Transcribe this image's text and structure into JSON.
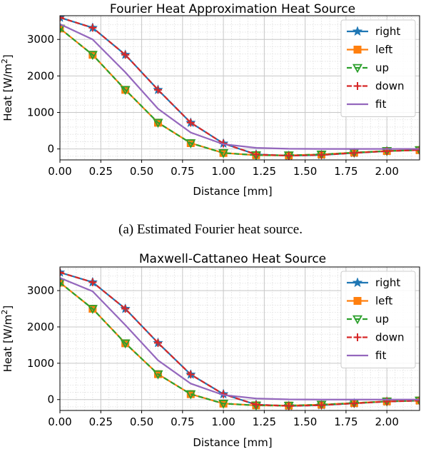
{
  "chart_data": [
    {
      "type": "line",
      "title": "Fourier Heat Approximation Heat Source",
      "xlabel": "Distance [mm]",
      "ylabel_main": "Heat [W/m",
      "ylabel_sup": "2",
      "ylabel_tail": "]",
      "xlim": [
        0,
        2.2
      ],
      "ylim": [
        -300,
        3650
      ],
      "xticks": [
        0,
        0.25,
        0.5,
        0.75,
        1.0,
        1.25,
        1.5,
        1.75,
        2.0
      ],
      "xtick_labels": [
        "0.00",
        "0.25",
        "0.50",
        "0.75",
        "1.00",
        "1.25",
        "1.50",
        "1.75",
        "2.00"
      ],
      "yticks": [
        0,
        1000,
        2000,
        3000
      ],
      "ytick_labels": [
        "0",
        "1000",
        "2000",
        "3000"
      ],
      "grid": true,
      "legend_position": "top-right",
      "caption": "(a) Estimated Fourier heat source.",
      "series": [
        {
          "name": "right",
          "color": "#1f77b4",
          "marker": "star",
          "dash": "solid",
          "x": [
            0,
            0.2,
            0.4,
            0.6,
            0.8,
            1.0,
            1.2,
            1.4,
            1.6,
            1.8,
            2.0,
            2.2
          ],
          "y": [
            3600,
            3320,
            2580,
            1620,
            720,
            150,
            -150,
            -185,
            -165,
            -110,
            -60,
            -30
          ]
        },
        {
          "name": "left",
          "color": "#ff7f0e",
          "marker": "square",
          "dash": "solid",
          "x": [
            0,
            0.2,
            0.4,
            0.6,
            0.8,
            1.0,
            1.2,
            1.4,
            1.6,
            1.8,
            2.0,
            2.2
          ],
          "y": [
            3300,
            2580,
            1620,
            720,
            160,
            -110,
            -170,
            -175,
            -150,
            -100,
            -55,
            -30
          ]
        },
        {
          "name": "up",
          "color": "#2ca02c",
          "marker": "triangle-down",
          "dash": "dashed",
          "x": [
            0,
            0.2,
            0.4,
            0.6,
            0.8,
            1.0,
            1.2,
            1.4,
            1.6,
            1.8,
            2.0,
            2.2
          ],
          "y": [
            3300,
            2580,
            1620,
            720,
            160,
            -110,
            -170,
            -175,
            -150,
            -100,
            -55,
            -30
          ]
        },
        {
          "name": "down",
          "color": "#d62728",
          "marker": "plus",
          "dash": "dashed",
          "x": [
            0,
            0.2,
            0.4,
            0.6,
            0.8,
            1.0,
            1.2,
            1.4,
            1.6,
            1.8,
            2.0,
            2.2
          ],
          "y": [
            3600,
            3320,
            2580,
            1620,
            720,
            150,
            -150,
            -185,
            -165,
            -110,
            -60,
            -30
          ]
        },
        {
          "name": "fit",
          "color": "#9467bd",
          "marker": "none",
          "dash": "solid",
          "x": [
            0,
            0.2,
            0.4,
            0.6,
            0.8,
            1.0,
            1.2,
            1.4,
            1.6,
            1.8,
            2.0,
            2.2
          ],
          "y": [
            3420,
            3000,
            2100,
            1100,
            450,
            130,
            30,
            5,
            0,
            0,
            0,
            0
          ]
        }
      ]
    },
    {
      "type": "line",
      "title": "Maxwell-Cattaneo Heat Source",
      "xlabel": "Distance [mm]",
      "ylabel_main": "Heat [W/m",
      "ylabel_sup": "2",
      "ylabel_tail": "]",
      "xlim": [
        0,
        2.2
      ],
      "ylim": [
        -300,
        3650
      ],
      "xticks": [
        0,
        0.25,
        0.5,
        0.75,
        1.0,
        1.25,
        1.5,
        1.75,
        2.0
      ],
      "xtick_labels": [
        "0.00",
        "0.25",
        "0.50",
        "0.75",
        "1.00",
        "1.25",
        "1.50",
        "1.75",
        "2.00"
      ],
      "yticks": [
        0,
        1000,
        2000,
        3000
      ],
      "ytick_labels": [
        "0",
        "1000",
        "2000",
        "3000"
      ],
      "grid": true,
      "legend_position": "top-right",
      "caption": "",
      "series": [
        {
          "name": "right",
          "color": "#1f77b4",
          "marker": "star",
          "dash": "solid",
          "x": [
            0,
            0.2,
            0.4,
            0.6,
            0.8,
            1.0,
            1.2,
            1.4,
            1.6,
            1.8,
            2.0,
            2.2
          ],
          "y": [
            3500,
            3230,
            2500,
            1560,
            690,
            150,
            -140,
            -175,
            -155,
            -105,
            -55,
            -30
          ]
        },
        {
          "name": "left",
          "color": "#ff7f0e",
          "marker": "square",
          "dash": "solid",
          "x": [
            0,
            0.2,
            0.4,
            0.6,
            0.8,
            1.0,
            1.2,
            1.4,
            1.6,
            1.8,
            2.0,
            2.2
          ],
          "y": [
            3220,
            2500,
            1550,
            700,
            150,
            -110,
            -160,
            -165,
            -140,
            -95,
            -50,
            -25
          ]
        },
        {
          "name": "up",
          "color": "#2ca02c",
          "marker": "triangle-down",
          "dash": "dashed",
          "x": [
            0,
            0.2,
            0.4,
            0.6,
            0.8,
            1.0,
            1.2,
            1.4,
            1.6,
            1.8,
            2.0,
            2.2
          ],
          "y": [
            3220,
            2500,
            1550,
            700,
            150,
            -110,
            -160,
            -165,
            -140,
            -95,
            -50,
            -25
          ]
        },
        {
          "name": "down",
          "color": "#d62728",
          "marker": "plus",
          "dash": "dashed",
          "x": [
            0,
            0.2,
            0.4,
            0.6,
            0.8,
            1.0,
            1.2,
            1.4,
            1.6,
            1.8,
            2.0,
            2.2
          ],
          "y": [
            3500,
            3230,
            2500,
            1560,
            690,
            150,
            -140,
            -175,
            -155,
            -105,
            -55,
            -30
          ]
        },
        {
          "name": "fit",
          "color": "#9467bd",
          "marker": "none",
          "dash": "solid",
          "x": [
            0,
            0.2,
            0.4,
            0.6,
            0.8,
            1.0,
            1.2,
            1.4,
            1.6,
            1.8,
            2.0,
            2.2
          ],
          "y": [
            3350,
            2980,
            2050,
            1080,
            440,
            125,
            30,
            5,
            0,
            0,
            0,
            0
          ]
        }
      ]
    }
  ]
}
